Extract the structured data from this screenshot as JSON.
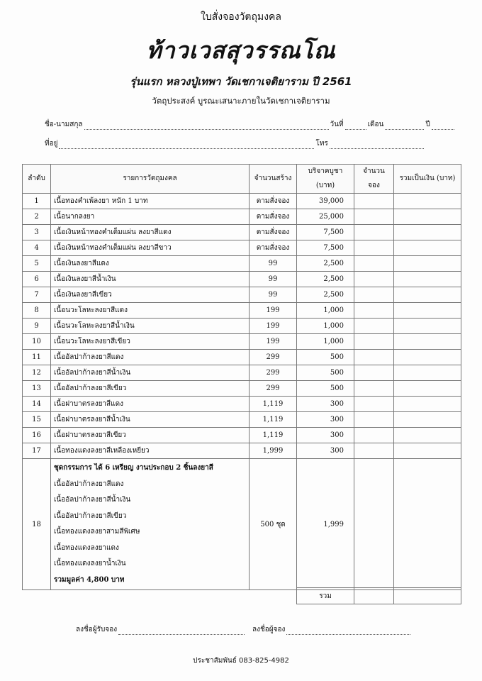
{
  "header": {
    "form_title": "ใบสั่งจองวัตถุมงคล",
    "logo_title": "ท้าวเวสสุวรรณโณ",
    "subtitle": "รุ่นแรก หลวงปู่เทพา วัดเชกาเจติยาราม ปี 2561",
    "purpose": "วัตถุประสงค์ บูรณะเสนาะภายในวัดเชกาเจติยาราม"
  },
  "fields": {
    "name_label": "ชื่อ-นามสกุล",
    "day_label": "วันที่",
    "month_label": "เดือน",
    "year_label": "ปี",
    "address_label": "ที่อยู่",
    "phone_label": "โทร"
  },
  "table": {
    "headers": [
      "ลำดับ",
      "รายการวัตถุมงคล",
      "จำนวนสร้าง",
      "บริจาคบูชา (บาท)",
      "จำนวนจอง",
      "รวมเป็นเงิน (บาท)"
    ],
    "rows": [
      {
        "no": "1",
        "item": "เนื้อทองคำเพ้ลงยา หนัก 1 บาท",
        "qty": "ตามสั่งจอง",
        "price": "39,000"
      },
      {
        "no": "2",
        "item": "เนื้อนากลงยา",
        "qty": "ตามสั่งจอง",
        "price": "25,000"
      },
      {
        "no": "3",
        "item": "เนื้อเงินหน้าทองคำเต็มแผ่น ลงยาสีแดง",
        "qty": "ตามสั่งจอง",
        "price": "7,500"
      },
      {
        "no": "4",
        "item": "เนื้อเงินหน้าทองคำเต็มแผ่น ลงยาสีขาว",
        "qty": "ตามสั่งจอง",
        "price": "7,500"
      },
      {
        "no": "5",
        "item": "เนื้อเงินลงยาสีแดง",
        "qty": "99",
        "price": "2,500"
      },
      {
        "no": "6",
        "item": "เนื้อเงินลงยาสีน้ำเงิน",
        "qty": "99",
        "price": "2,500"
      },
      {
        "no": "7",
        "item": "เนื้อเงินลงยาสีเขียว",
        "qty": "99",
        "price": "2,500"
      },
      {
        "no": "8",
        "item": "เนื้อนวะโลหะลงยาสีแดง",
        "qty": "199",
        "price": "1,000"
      },
      {
        "no": "9",
        "item": "เนื้อนวะโลหะลงยาสีน้ำเงิน",
        "qty": "199",
        "price": "1,000"
      },
      {
        "no": "10",
        "item": "เนื้อนวะโลหะลงยาสีเขียว",
        "qty": "199",
        "price": "1,000"
      },
      {
        "no": "11",
        "item": "เนื้ออัลปาก้าลงยาสีแดง",
        "qty": "299",
        "price": "500"
      },
      {
        "no": "12",
        "item": "เนื้ออัลปาก้าลงยาสีน้ำเงิน",
        "qty": "299",
        "price": "500"
      },
      {
        "no": "13",
        "item": "เนื้ออัลปาก้าลงยาสีเขียว",
        "qty": "299",
        "price": "500"
      },
      {
        "no": "14",
        "item": "เนื้อฝาบาตรลงยาสีแดง",
        "qty": "1,119",
        "price": "300"
      },
      {
        "no": "15",
        "item": "เนื้อฝาบาตรลงยาสีน้ำเงิน",
        "qty": "1,119",
        "price": "300"
      },
      {
        "no": "16",
        "item": "เนื้อฝาบาตรลงยาสีเขียว",
        "qty": "1,119",
        "price": "300"
      },
      {
        "no": "17",
        "item": "เนื้อทองแดงลงยาสีเหลืองเหยียว",
        "qty": "1,999",
        "price": "300"
      }
    ],
    "set_row": {
      "no": "18",
      "title": "ชุดกรรมการ ได้ 6 เหรียญ งานประกอบ 2 ชิ้นลงยาสี",
      "lines": [
        "เนื้ออัลปาก้าลงยาสีแดง",
        "เนื้ออัลปาก้าลงยาสีน้ำเงิน",
        "เนื้ออัลปาก้าลงยาสีเขียว",
        "เนื้อทองแดงลงยาสามสีพิเศษ",
        "เนื้อทองแดงลงยาแดง",
        "เนื้อทองแดงลงยาน้ำเงิน"
      ],
      "value_note": "รวมมูลค่า 4,800 บาท",
      "qty": "500 ชุด",
      "price": "1,999"
    },
    "total_label": "รวม"
  },
  "signatures": {
    "receiver_label": "ลงชื่อผู้รับจอง",
    "orderer_label": "ลงชื่อผู้จอง"
  },
  "footer": {
    "contact": "ประชาสัมพันธ์ 083-825-4982"
  }
}
